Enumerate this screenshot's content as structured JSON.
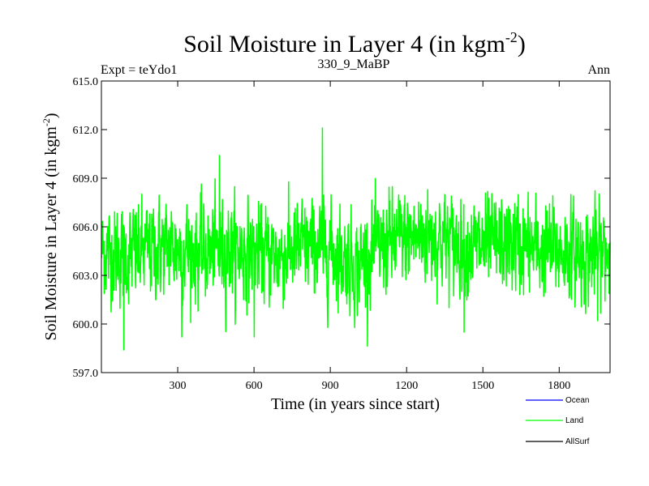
{
  "chart_data": {
    "type": "line",
    "title": "Soil Moisture in Layer 4 (in kgm",
    "title_sup": "-2",
    "title_end": ")",
    "subtitle_left": "Expt = teYdo1",
    "subtitle_center": "330_9_MaBP",
    "subtitle_right": "Ann",
    "xlabel": "Time (in years since start)",
    "ylabel": "Soil Moisture in Layer 4 (in kgm",
    "ylabel_sup": "-2",
    "ylabel_end": ")",
    "xlim": [
      0,
      2000
    ],
    "ylim": [
      597.0,
      615.0
    ],
    "xticks": [
      300,
      600,
      900,
      1200,
      1500,
      1800
    ],
    "xtick_labels": [
      "300",
      "600",
      "900",
      "1200",
      "1500",
      "1800"
    ],
    "yticks": [
      597.0,
      600.0,
      603.0,
      606.0,
      609.0,
      612.0,
      615.0
    ],
    "ytick_labels": [
      "597.0",
      "600.0",
      "603.0",
      "606.0",
      "609.0",
      "612.0",
      "615.0"
    ],
    "legend": [
      {
        "name": "Ocean",
        "color": "#0000ff"
      },
      {
        "name": "Land",
        "color": "#00ff00"
      },
      {
        "name": "AllSurf",
        "color": "#000000"
      }
    ],
    "series": [
      {
        "name": "Land",
        "color": "#00ff00",
        "n_points": 2000,
        "anchors": [
          [
            0,
            604.5
          ],
          [
            100,
            604.2
          ],
          [
            200,
            604.6
          ],
          [
            300,
            604.8
          ],
          [
            400,
            604.3
          ],
          [
            500,
            604.7
          ],
          [
            600,
            604.4
          ],
          [
            700,
            604.2
          ],
          [
            800,
            604.8
          ],
          [
            900,
            604.6
          ],
          [
            1000,
            603.6
          ],
          [
            1100,
            604.8
          ],
          [
            1200,
            605.3
          ],
          [
            1300,
            605.5
          ],
          [
            1400,
            604.9
          ],
          [
            1500,
            604.7
          ],
          [
            1600,
            605.0
          ],
          [
            1700,
            604.6
          ],
          [
            1800,
            604.5
          ],
          [
            1900,
            604.3
          ],
          [
            2000,
            604.5
          ]
        ],
        "spikes": [
          [
            87,
            598.4
          ],
          [
            463,
            610.4
          ],
          [
            868,
            612.1
          ],
          [
            315,
            599.2
          ],
          [
            600,
            599.2
          ],
          [
            1425,
            599.5
          ],
          [
            1950,
            600.2
          ]
        ],
        "noise_sd": 1.45
      },
      {
        "name": "Ocean",
        "color": "#0000ff",
        "values": []
      },
      {
        "name": "AllSurf",
        "color": "#000000",
        "values": []
      }
    ]
  }
}
